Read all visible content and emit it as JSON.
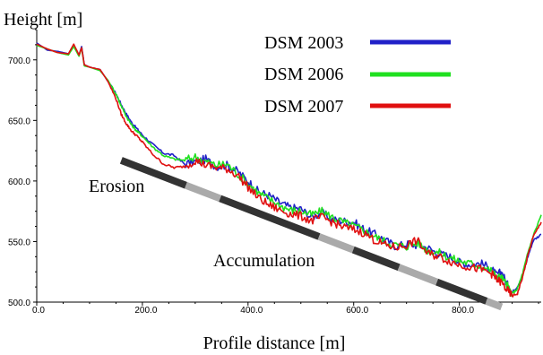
{
  "chart_data": {
    "type": "line",
    "ylabel": "Height [m]",
    "xlabel": "Profile distance [m]",
    "xlim": [
      0,
      955
    ],
    "ylim": [
      500,
      725
    ],
    "x_ticks": [
      "0.0",
      "200.0",
      "400.0",
      "600.0",
      "800.0"
    ],
    "x_tick_values": [
      0,
      200,
      400,
      600,
      800
    ],
    "y_ticks": [
      "500.0",
      "550.0",
      "600.0",
      "650.0",
      "700.0"
    ],
    "y_tick_values": [
      500,
      550,
      600,
      650,
      700
    ],
    "legend_position": "top-right",
    "series": [
      {
        "name": "DSM 2003",
        "color": "#2020c8",
        "x": [
          0,
          20,
          40,
          60,
          70,
          80,
          85,
          90,
          100,
          120,
          135,
          150,
          160,
          170,
          180,
          190,
          200,
          220,
          240,
          260,
          280,
          300,
          320,
          340,
          360,
          380,
          400,
          420,
          440,
          460,
          480,
          500,
          520,
          540,
          560,
          580,
          600,
          620,
          640,
          660,
          680,
          700,
          720,
          740,
          760,
          780,
          800,
          820,
          840,
          860,
          870,
          880,
          890,
          900,
          910,
          920,
          930,
          940,
          955
        ],
        "values": [
          714,
          708,
          707,
          705,
          712,
          704,
          711,
          696,
          694,
          692,
          682,
          672,
          663,
          655,
          648,
          643,
          638,
          630,
          623,
          621,
          614,
          616,
          618,
          612,
          613,
          608,
          600,
          591,
          588,
          582,
          578,
          577,
          570,
          574,
          568,
          567,
          566,
          560,
          556,
          551,
          546,
          548,
          547,
          545,
          540,
          538,
          533,
          531,
          532,
          528,
          522,
          525,
          515,
          508,
          513,
          522,
          538,
          551,
          556
        ]
      },
      {
        "name": "DSM 2006",
        "color": "#20e020",
        "x": [
          0,
          20,
          40,
          60,
          70,
          80,
          85,
          90,
          100,
          120,
          135,
          150,
          160,
          170,
          180,
          190,
          200,
          220,
          240,
          260,
          280,
          300,
          320,
          340,
          360,
          380,
          400,
          420,
          440,
          460,
          480,
          500,
          520,
          540,
          560,
          580,
          600,
          620,
          640,
          660,
          680,
          700,
          720,
          740,
          760,
          780,
          800,
          820,
          840,
          860,
          870,
          880,
          890,
          900,
          910,
          920,
          930,
          940,
          955
        ],
        "values": [
          712,
          709,
          706,
          704,
          711,
          703,
          710,
          695,
          694,
          691,
          683,
          672,
          662,
          653,
          646,
          641,
          637,
          628,
          621,
          618,
          617,
          620,
          616,
          613,
          614,
          606,
          598,
          590,
          585,
          580,
          576,
          575,
          572,
          575,
          570,
          566,
          563,
          559,
          554,
          550,
          547,
          546,
          549,
          543,
          541,
          537,
          534,
          532,
          530,
          526,
          521,
          520,
          514,
          507,
          511,
          524,
          541,
          555,
          572
        ]
      },
      {
        "name": "DSM 2007",
        "color": "#e01010",
        "x": [
          0,
          20,
          40,
          60,
          70,
          80,
          85,
          90,
          100,
          120,
          135,
          150,
          160,
          170,
          180,
          190,
          200,
          220,
          240,
          260,
          280,
          300,
          320,
          340,
          360,
          380,
          400,
          420,
          440,
          460,
          480,
          500,
          520,
          540,
          560,
          580,
          600,
          620,
          640,
          660,
          680,
          700,
          720,
          740,
          760,
          780,
          800,
          820,
          840,
          860,
          870,
          880,
          890,
          900,
          910,
          920,
          930,
          940,
          955
        ],
        "values": [
          713,
          709,
          706,
          705,
          713,
          704,
          710,
          696,
          694,
          692,
          682,
          668,
          655,
          647,
          641,
          637,
          632,
          622,
          614,
          611,
          612,
          617,
          613,
          611,
          610,
          605,
          595,
          586,
          580,
          576,
          573,
          571,
          567,
          570,
          566,
          562,
          560,
          557,
          551,
          547,
          545,
          547,
          551,
          540,
          538,
          534,
          531,
          529,
          527,
          524,
          519,
          516,
          510,
          505,
          507,
          521,
          539,
          554,
          566
        ]
      }
    ],
    "annotations": [
      {
        "text": "Erosion"
      },
      {
        "text": "Accumulation"
      }
    ],
    "segment_bar": {
      "x_start": 160,
      "y_start": 617,
      "x_end": 880,
      "y_end": 496,
      "segments": [
        "erosion",
        "accumulation",
        "erosion",
        "accumulation",
        "erosion",
        "accumulation",
        "erosion",
        "accumulation"
      ],
      "colors": {
        "erosion": "#333333",
        "accumulation": "#aaaaaa"
      }
    }
  }
}
